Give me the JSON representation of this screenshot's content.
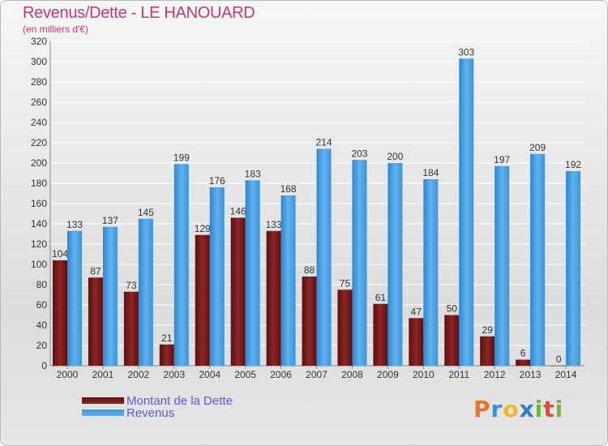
{
  "chart_data": {
    "type": "bar",
    "title": "Revenus/Dette - LE HANOUARD",
    "subtitle": "(en milliers d'€)",
    "categories": [
      "2000",
      "2001",
      "2002",
      "2003",
      "2004",
      "2005",
      "2006",
      "2007",
      "2008",
      "2009",
      "2010",
      "2011",
      "2012",
      "2013",
      "2014"
    ],
    "series": [
      {
        "name": "Montant de la Dette",
        "color": "#7a1a1a",
        "values": [
          104,
          87,
          73,
          21,
          129,
          146,
          133,
          88,
          75,
          61,
          47,
          50,
          29,
          6,
          0
        ]
      },
      {
        "name": "Revenus",
        "color": "#4ea3e4",
        "values": [
          133,
          137,
          145,
          199,
          176,
          183,
          168,
          214,
          203,
          200,
          184,
          303,
          197,
          209,
          192
        ]
      }
    ],
    "ylim": [
      0,
      320
    ],
    "yticks": [
      0,
      20,
      40,
      60,
      80,
      100,
      120,
      140,
      160,
      180,
      200,
      220,
      240,
      260,
      280,
      300,
      320
    ],
    "grid": true,
    "legend_position": "bottom-left"
  },
  "logo": {
    "letters": [
      "P",
      "r",
      "o",
      "x",
      "i",
      "t",
      "i"
    ],
    "colors": [
      "#e8742a",
      "#3a8fd6",
      "#f0b82a",
      "#2a7fd0",
      "#6cb83a",
      "#e84a2a",
      "#6cb83a"
    ]
  }
}
